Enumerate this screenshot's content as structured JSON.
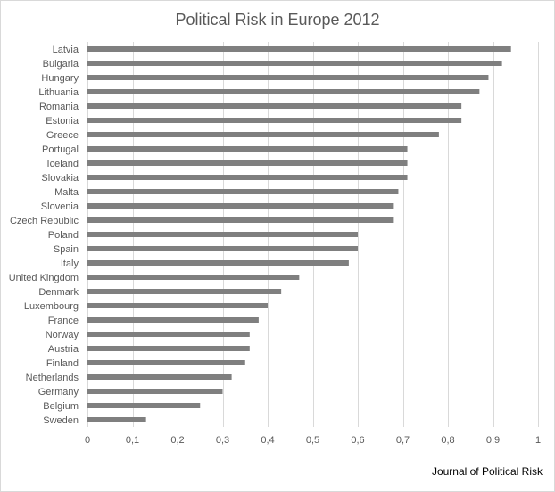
{
  "chart_data": {
    "type": "bar",
    "orientation": "horizontal",
    "title": "Political Risk in Europe 2012",
    "source_note": "Journal of Political Risk",
    "categories": [
      "Latvia",
      "Bulgaria",
      "Hungary",
      "Lithuania",
      "Romania",
      "Estonia",
      "Greece",
      "Portugal",
      "Iceland",
      "Slovakia",
      "Malta",
      "Slovenia",
      "Czech Republic",
      "Poland",
      "Spain",
      "Italy",
      "United Kingdom",
      "Denmark",
      "Luxembourg",
      "France",
      "Norway",
      "Austria",
      "Finland",
      "Netherlands",
      "Germany",
      "Belgium",
      "Sweden"
    ],
    "values": [
      0.94,
      0.92,
      0.89,
      0.87,
      0.83,
      0.83,
      0.78,
      0.71,
      0.71,
      0.71,
      0.69,
      0.68,
      0.68,
      0.6,
      0.6,
      0.58,
      0.47,
      0.43,
      0.4,
      0.38,
      0.36,
      0.36,
      0.35,
      0.32,
      0.3,
      0.25,
      0.13
    ],
    "xlim": [
      0,
      1
    ],
    "x_ticks": [
      0,
      0.1,
      0.2,
      0.3,
      0.4,
      0.5,
      0.6,
      0.7,
      0.8,
      0.9,
      1
    ],
    "x_tick_labels": [
      "0",
      "0,1",
      "0,2",
      "0,3",
      "0,4",
      "0,5",
      "0,6",
      "0,7",
      "0,8",
      "0,9",
      "1"
    ],
    "grid": "vertical",
    "legend": "none",
    "colors": {
      "bar": "#7f7f7f",
      "grid": "#d9d9d9",
      "text": "#595959"
    }
  }
}
